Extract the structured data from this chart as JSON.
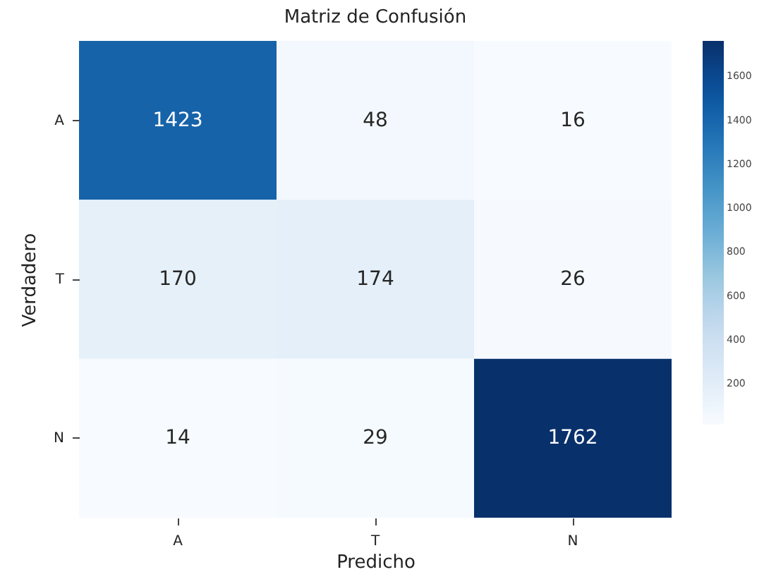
{
  "chart_data": {
    "type": "heatmap",
    "title": "Matriz de Confusión",
    "xlabel": "Predicho",
    "ylabel": "Verdadero",
    "categories": [
      "A",
      "T",
      "N"
    ],
    "y_categories": [
      "A",
      "T",
      "N"
    ],
    "cells": [
      [
        1423,
        48,
        16
      ],
      [
        170,
        174,
        26
      ],
      [
        14,
        29,
        1762
      ]
    ],
    "data_labels": true,
    "clim": [
      14,
      1762
    ],
    "cticks": [
      200,
      400,
      600,
      800,
      1000,
      1200,
      1400,
      1600
    ]
  }
}
